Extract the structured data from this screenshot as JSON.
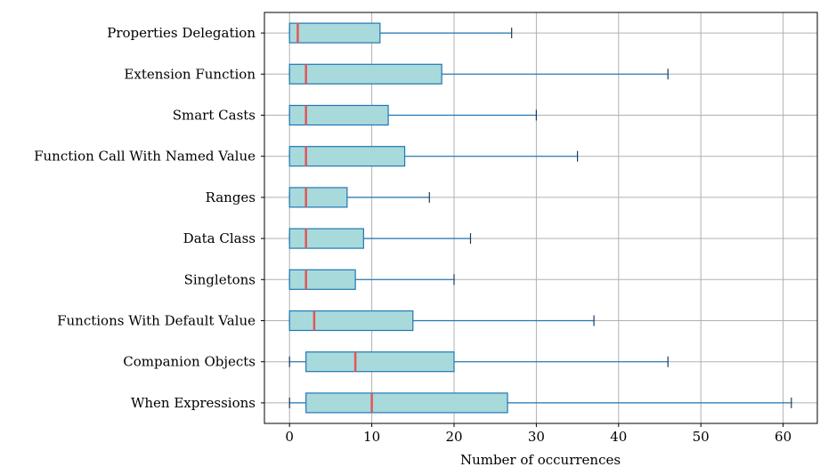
{
  "chart_data": {
    "type": "boxplot",
    "orientation": "horizontal",
    "title": "",
    "xlabel": "Number of occurrences",
    "ylabel": "",
    "xlim": [
      -3,
      64
    ],
    "xticks": [
      0,
      10,
      20,
      30,
      40,
      50,
      60
    ],
    "grid": true,
    "categories": [
      "Properties Delegation",
      "Extension Function",
      "Smart Casts",
      "Function Call With Named Value",
      "Ranges",
      "Data Class",
      "Singletons",
      "Functions With Default Value",
      "Companion Objects",
      "When Expressions"
    ],
    "boxes": [
      {
        "whisker_low": 0,
        "q1": 0,
        "median": 1,
        "q3": 11,
        "whisker_high": 27
      },
      {
        "whisker_low": 0,
        "q1": 0,
        "median": 2,
        "q3": 18.5,
        "whisker_high": 46
      },
      {
        "whisker_low": 0,
        "q1": 0,
        "median": 2,
        "q3": 12,
        "whisker_high": 30
      },
      {
        "whisker_low": 0,
        "q1": 0,
        "median": 2,
        "q3": 14,
        "whisker_high": 35
      },
      {
        "whisker_low": 0,
        "q1": 0,
        "median": 2,
        "q3": 7,
        "whisker_high": 17
      },
      {
        "whisker_low": 0,
        "q1": 0,
        "median": 2,
        "q3": 9,
        "whisker_high": 22
      },
      {
        "whisker_low": 0,
        "q1": 0,
        "median": 2,
        "q3": 8,
        "whisker_high": 20
      },
      {
        "whisker_low": 0,
        "q1": 0,
        "median": 3,
        "q3": 15,
        "whisker_high": 37
      },
      {
        "whisker_low": 0,
        "q1": 2,
        "median": 8,
        "q3": 20,
        "whisker_high": 46
      },
      {
        "whisker_low": 0,
        "q1": 2,
        "median": 10,
        "q3": 26.5,
        "whisker_high": 61
      }
    ],
    "colors": {
      "box_fill": "#a8dadc",
      "box_edge": "#1f77b4",
      "whisker": "#1f77b4",
      "median": "#e15759",
      "grid": "#b0b0b0",
      "axes": "#000000"
    }
  }
}
